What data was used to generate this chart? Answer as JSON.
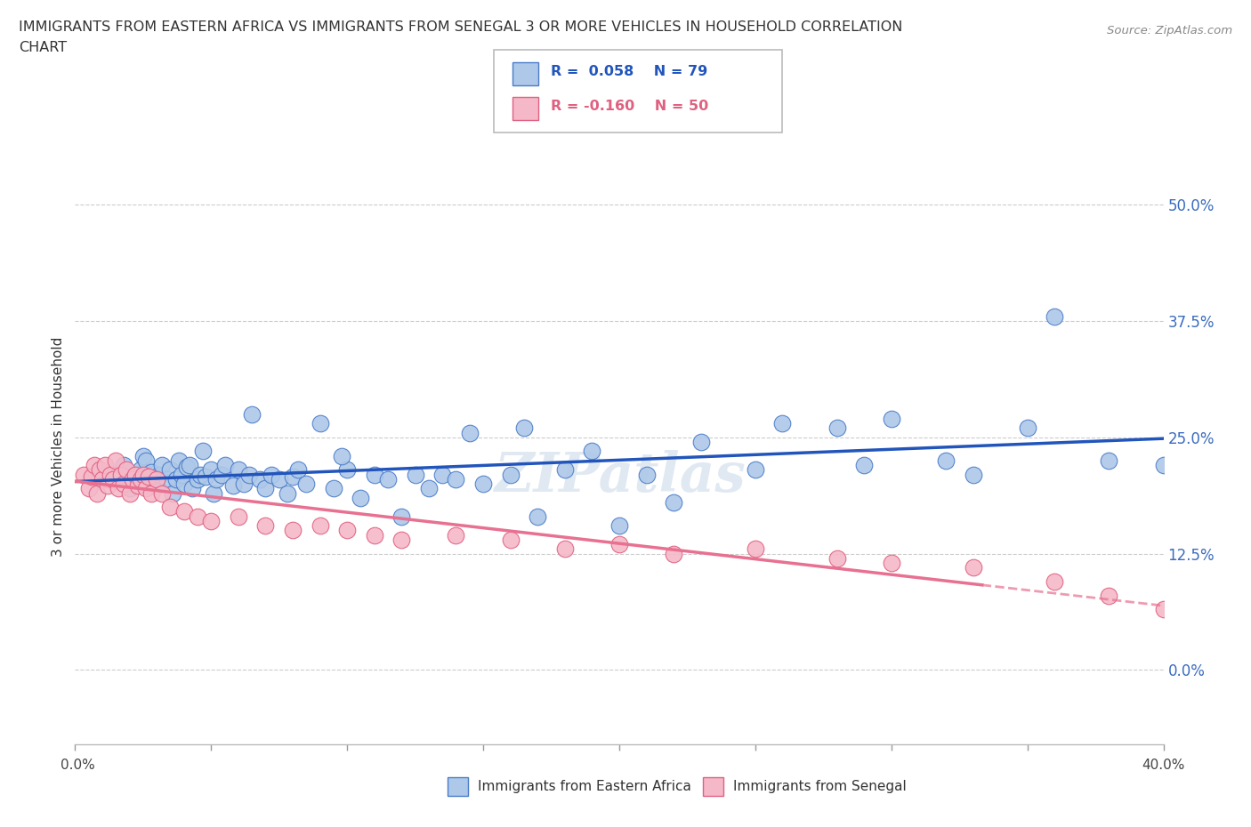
{
  "title_line1": "IMMIGRANTS FROM EASTERN AFRICA VS IMMIGRANTS FROM SENEGAL 3 OR MORE VEHICLES IN HOUSEHOLD CORRELATION",
  "title_line2": "CHART",
  "source": "Source: ZipAtlas.com",
  "ylabel": "3 or more Vehicles in Household",
  "ytick_values": [
    0.0,
    12.5,
    25.0,
    37.5,
    50.0
  ],
  "xlim": [
    0.0,
    40.0
  ],
  "ylim": [
    -8.0,
    56.0
  ],
  "blue_R": 0.058,
  "blue_N": 79,
  "pink_R": -0.16,
  "pink_N": 50,
  "blue_color": "#adc8e8",
  "pink_color": "#f5b8c8",
  "blue_edge_color": "#4a7cc9",
  "pink_edge_color": "#e06080",
  "blue_line_color": "#2255bb",
  "pink_line_color": "#e87090",
  "blue_legend_label": "Immigrants from Eastern Africa",
  "pink_legend_label": "Immigrants from Senegal",
  "watermark": "ZIPatlas",
  "grid_color": "#cccccc",
  "background_color": "#ffffff",
  "blue_x": [
    1.2,
    1.5,
    1.8,
    2.0,
    2.2,
    2.4,
    2.5,
    2.6,
    2.7,
    2.8,
    3.0,
    3.1,
    3.2,
    3.4,
    3.5,
    3.6,
    3.7,
    3.8,
    3.9,
    4.0,
    4.1,
    4.2,
    4.3,
    4.5,
    4.6,
    4.7,
    4.8,
    5.0,
    5.1,
    5.2,
    5.4,
    5.5,
    5.8,
    6.0,
    6.2,
    6.4,
    6.5,
    6.8,
    7.0,
    7.2,
    7.5,
    7.8,
    8.0,
    8.2,
    8.5,
    9.0,
    9.5,
    10.0,
    10.5,
    11.0,
    11.5,
    12.0,
    12.5,
    13.0,
    13.5,
    14.0,
    15.0,
    16.0,
    17.0,
    18.0,
    20.0,
    22.0,
    25.0,
    28.0,
    30.0,
    33.0,
    35.0,
    36.0,
    38.0,
    40.0,
    9.8,
    14.5,
    16.5,
    19.0,
    26.0,
    29.0,
    32.0,
    23.0,
    21.0
  ],
  "blue_y": [
    20.5,
    21.0,
    22.0,
    19.5,
    20.8,
    21.5,
    23.0,
    22.5,
    20.0,
    21.2,
    19.8,
    21.0,
    22.0,
    20.5,
    21.5,
    19.0,
    20.5,
    22.5,
    21.0,
    20.0,
    21.8,
    22.0,
    19.5,
    20.5,
    21.0,
    23.5,
    20.8,
    21.5,
    19.0,
    20.5,
    21.0,
    22.0,
    19.8,
    21.5,
    20.0,
    21.0,
    27.5,
    20.5,
    19.5,
    21.0,
    20.5,
    19.0,
    20.8,
    21.5,
    20.0,
    26.5,
    19.5,
    21.5,
    18.5,
    21.0,
    20.5,
    16.5,
    21.0,
    19.5,
    21.0,
    20.5,
    20.0,
    21.0,
    16.5,
    21.5,
    15.5,
    18.0,
    21.5,
    26.0,
    27.0,
    21.0,
    26.0,
    38.0,
    22.5,
    22.0,
    23.0,
    25.5,
    26.0,
    23.5,
    26.5,
    22.0,
    22.5,
    24.5,
    21.0
  ],
  "pink_x": [
    0.3,
    0.5,
    0.6,
    0.7,
    0.8,
    0.9,
    1.0,
    1.1,
    1.2,
    1.3,
    1.4,
    1.5,
    1.6,
    1.7,
    1.8,
    1.9,
    2.0,
    2.1,
    2.2,
    2.3,
    2.4,
    2.5,
    2.6,
    2.7,
    2.8,
    3.0,
    3.2,
    3.5,
    4.0,
    4.5,
    5.0,
    6.0,
    7.0,
    8.0,
    9.0,
    10.0,
    11.0,
    12.0,
    14.0,
    16.0,
    18.0,
    20.0,
    22.0,
    25.0,
    28.0,
    30.0,
    33.0,
    36.0,
    38.0,
    40.0
  ],
  "pink_y": [
    21.0,
    19.5,
    20.8,
    22.0,
    19.0,
    21.5,
    20.5,
    22.0,
    19.8,
    21.0,
    20.5,
    22.5,
    19.5,
    21.0,
    20.0,
    21.5,
    19.0,
    20.5,
    21.0,
    19.8,
    20.5,
    21.0,
    19.5,
    20.8,
    19.0,
    20.5,
    19.0,
    17.5,
    17.0,
    16.5,
    16.0,
    16.5,
    15.5,
    15.0,
    15.5,
    15.0,
    14.5,
    14.0,
    14.5,
    14.0,
    13.0,
    13.5,
    12.5,
    13.0,
    12.0,
    11.5,
    11.0,
    9.5,
    8.0,
    6.5
  ]
}
